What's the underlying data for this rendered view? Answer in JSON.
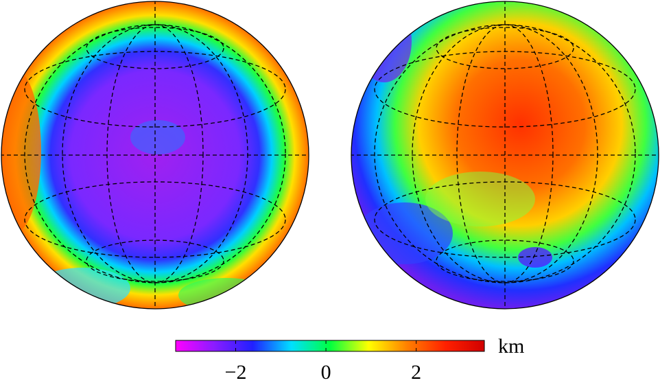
{
  "colorbar": {
    "label": "km",
    "lim": [
      -3.33,
      3.51
    ],
    "ticks": [
      {
        "value": -2,
        "label": "−2"
      },
      0,
      2
    ],
    "colormap": [
      "#ff00ff",
      "#8a1cff",
      "#2020ff",
      "#00e0ff",
      "#00ff40",
      "#ffff00",
      "#ff8000",
      "#ff2000",
      "#d00000"
    ]
  }
}
